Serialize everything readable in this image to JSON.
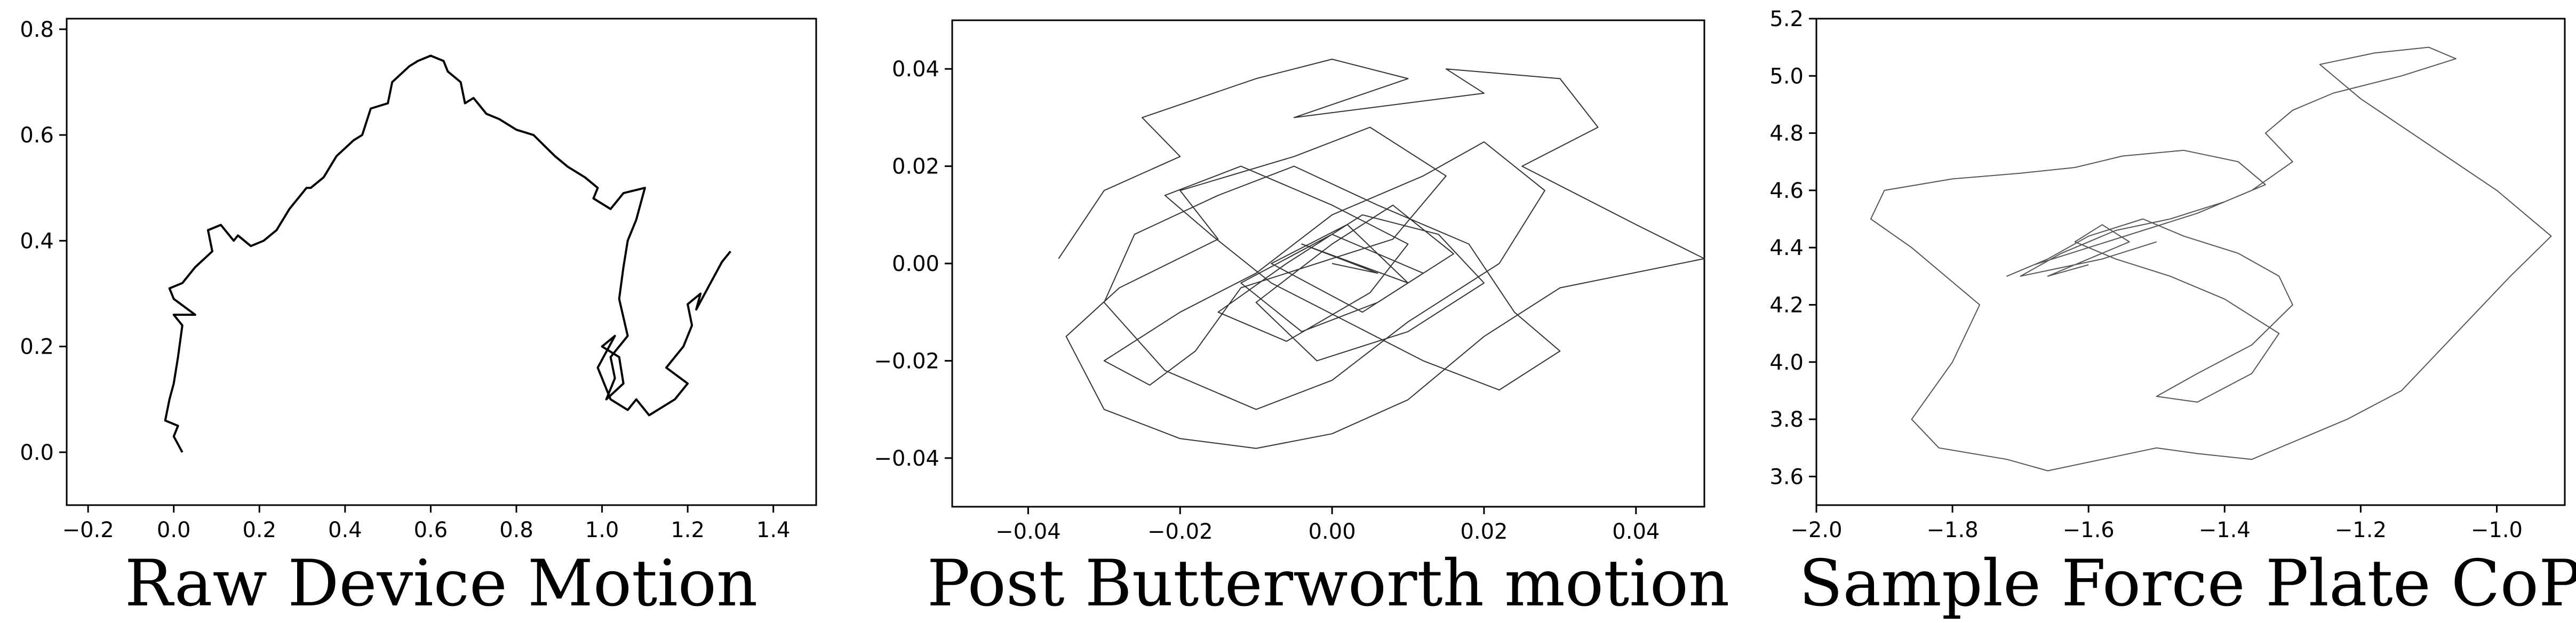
{
  "figure": {
    "panels_count": 3
  },
  "chart_data": [
    {
      "type": "line",
      "title": "Raw Device Motion",
      "xlabel": "",
      "ylabel": "",
      "xlim": [
        -0.25,
        1.5
      ],
      "ylim": [
        -0.1,
        0.82
      ],
      "xticks": [
        -0.2,
        0.0,
        0.2,
        0.4,
        0.6,
        0.8,
        1.0,
        1.2,
        1.4
      ],
      "xtick_labels": [
        "−0.2",
        "0.0",
        "0.2",
        "0.4",
        "0.6",
        "0.8",
        "1.0",
        "1.2",
        "1.4"
      ],
      "yticks": [
        0.0,
        0.2,
        0.4,
        0.6,
        0.8
      ],
      "ytick_labels": [
        "0.0",
        "0.2",
        "0.4",
        "0.6",
        "0.8"
      ],
      "grid": false,
      "line_color": "#000000",
      "series": [
        {
          "x": [
            0.02,
            0.0,
            0.01,
            -0.02,
            -0.01,
            0.0,
            0.01,
            0.02,
            0.0,
            0.05,
            0.0,
            -0.01,
            0.02,
            0.05,
            0.09,
            0.08,
            0.11,
            0.14,
            0.15,
            0.18,
            0.21,
            0.24,
            0.27,
            0.31,
            0.32,
            0.35,
            0.38,
            0.42,
            0.44,
            0.46,
            0.5,
            0.51,
            0.55,
            0.57,
            0.6,
            0.63,
            0.64,
            0.67,
            0.68,
            0.7,
            0.73,
            0.76,
            0.8,
            0.84,
            0.89,
            0.92,
            0.96,
            0.99,
            0.98,
            1.02,
            1.05,
            1.1,
            1.08,
            1.06,
            1.05,
            1.04,
            1.06,
            1.02,
            1.03,
            1.01,
            1.05,
            1.04,
            1.0,
            1.03,
            0.99,
            1.02,
            1.06,
            1.08,
            1.11,
            1.13,
            1.17,
            1.2,
            1.15,
            1.19,
            1.21,
            1.2,
            1.23,
            1.22,
            1.26,
            1.28,
            1.3
          ],
          "y": [
            0.0,
            0.03,
            0.05,
            0.06,
            0.1,
            0.13,
            0.18,
            0.24,
            0.26,
            0.26,
            0.29,
            0.31,
            0.32,
            0.35,
            0.38,
            0.42,
            0.43,
            0.4,
            0.41,
            0.39,
            0.4,
            0.42,
            0.46,
            0.5,
            0.5,
            0.52,
            0.56,
            0.59,
            0.6,
            0.65,
            0.66,
            0.7,
            0.73,
            0.74,
            0.75,
            0.74,
            0.72,
            0.7,
            0.66,
            0.67,
            0.64,
            0.63,
            0.61,
            0.6,
            0.56,
            0.54,
            0.52,
            0.5,
            0.48,
            0.46,
            0.49,
            0.5,
            0.44,
            0.4,
            0.35,
            0.29,
            0.22,
            0.18,
            0.14,
            0.1,
            0.13,
            0.18,
            0.2,
            0.22,
            0.16,
            0.1,
            0.08,
            0.1,
            0.07,
            0.08,
            0.1,
            0.13,
            0.16,
            0.2,
            0.24,
            0.28,
            0.3,
            0.27,
            0.33,
            0.36,
            0.38
          ]
        }
      ]
    },
    {
      "type": "line",
      "title": "Post Butterworth motion",
      "xlabel": "",
      "ylabel": "",
      "xlim": [
        -0.05,
        0.049
      ],
      "ylim": [
        -0.05,
        0.05
      ],
      "xticks": [
        -0.04,
        -0.02,
        0.0,
        0.02,
        0.04
      ],
      "xtick_labels": [
        "−0.04",
        "−0.02",
        "0.00",
        "0.02",
        "0.04"
      ],
      "yticks": [
        -0.04,
        -0.02,
        0.0,
        0.02,
        0.04
      ],
      "ytick_labels": [
        "−0.04",
        "−0.02",
        "0.00",
        "0.02",
        "0.04"
      ],
      "grid": false,
      "line_color": "#333333",
      "series": [
        {
          "x": [
            -0.036,
            -0.03,
            -0.02,
            -0.025,
            -0.01,
            0.0,
            0.01,
            -0.005,
            0.02,
            0.015,
            0.03,
            0.035,
            0.025,
            0.04,
            0.049,
            0.03,
            0.02,
            0.01,
            0.0,
            -0.01,
            -0.02,
            -0.03,
            -0.035,
            -0.028,
            -0.015,
            -0.02,
            -0.005,
            0.005,
            0.015,
            0.008,
            -0.012,
            -0.018,
            -0.024,
            -0.03,
            -0.02,
            -0.01,
            0.0,
            0.012,
            0.02,
            0.028,
            0.022,
            0.01,
            0.0,
            -0.01,
            -0.022,
            -0.03,
            -0.026,
            -0.015,
            -0.005,
            0.006,
            0.018,
            0.024,
            0.03,
            0.022,
            0.012,
            0.002,
            -0.008,
            -0.016,
            -0.022,
            -0.012,
            0.0,
            0.01,
            0.005,
            -0.006,
            -0.015,
            -0.006,
            0.004,
            0.014,
            0.02,
            0.01,
            -0.002,
            -0.01,
            0.0,
            0.008,
            0.016,
            0.006,
            -0.004,
            -0.012,
            0.0,
            0.012,
            0.004,
            -0.008,
            0.002,
            0.01,
            -0.004,
            0.006,
            0.0
          ],
          "y": [
            0.001,
            0.015,
            0.022,
            0.03,
            0.038,
            0.042,
            0.038,
            0.03,
            0.035,
            0.04,
            0.038,
            0.028,
            0.02,
            0.008,
            0.001,
            -0.005,
            -0.015,
            -0.028,
            -0.035,
            -0.038,
            -0.036,
            -0.03,
            -0.015,
            -0.005,
            0.005,
            0.015,
            0.022,
            0.028,
            0.018,
            0.005,
            -0.005,
            -0.018,
            -0.025,
            -0.02,
            -0.01,
            -0.002,
            0.01,
            0.018,
            0.025,
            0.015,
            0.0,
            -0.012,
            -0.024,
            -0.03,
            -0.022,
            -0.008,
            0.006,
            0.014,
            0.02,
            0.012,
            0.004,
            -0.01,
            -0.018,
            -0.026,
            -0.02,
            -0.012,
            -0.004,
            0.006,
            0.014,
            0.02,
            0.012,
            0.004,
            -0.006,
            -0.016,
            -0.01,
            0.0,
            0.01,
            0.006,
            -0.004,
            -0.014,
            -0.02,
            -0.008,
            0.004,
            0.012,
            0.002,
            -0.008,
            -0.014,
            -0.004,
            0.006,
            -0.002,
            -0.01,
            0.0,
            0.008,
            -0.004,
            0.004,
            -0.002,
            0.0
          ]
        }
      ]
    },
    {
      "type": "line",
      "title": "Sample Force Plate CoP",
      "xlabel": "",
      "ylabel": "",
      "xlim": [
        -2.0,
        -0.9
      ],
      "ylim": [
        3.5,
        5.2
      ],
      "xticks": [
        -2.0,
        -1.8,
        -1.6,
        -1.4,
        -1.2,
        -1.0
      ],
      "xtick_labels": [
        "−2.0",
        "−1.8",
        "−1.6",
        "−1.4",
        "−1.2",
        "−1.0"
      ],
      "yticks": [
        3.6,
        3.8,
        4.0,
        4.2,
        4.4,
        4.6,
        4.8,
        5.0,
        5.2
      ],
      "ytick_labels": [
        "3.6",
        "3.8",
        "4.0",
        "4.2",
        "4.4",
        "4.6",
        "4.8",
        "5.0",
        "5.2"
      ],
      "grid": false,
      "line_color": "#555555",
      "series": [
        {
          "x": [
            -1.5,
            -1.58,
            -1.66,
            -1.7,
            -1.64,
            -1.56,
            -1.48,
            -1.4,
            -1.34,
            -1.38,
            -1.46,
            -1.55,
            -1.62,
            -1.7,
            -1.8,
            -1.9,
            -1.92,
            -1.86,
            -1.76,
            -1.8,
            -1.86,
            -1.82,
            -1.72,
            -1.66,
            -1.58,
            -1.5,
            -1.44,
            -1.36,
            -1.3,
            -1.22,
            -1.14,
            -1.06,
            -0.98,
            -0.92,
            -1.0,
            -1.1,
            -1.2,
            -1.26,
            -1.18,
            -1.1,
            -1.06,
            -1.14,
            -1.24,
            -1.3,
            -1.34,
            -1.3,
            -1.36,
            -1.44,
            -1.52,
            -1.6,
            -1.68,
            -1.72,
            -1.66,
            -1.6,
            -1.52,
            -1.46,
            -1.38,
            -1.32,
            -1.3,
            -1.36,
            -1.44,
            -1.5,
            -1.44,
            -1.36,
            -1.32,
            -1.4,
            -1.48,
            -1.56,
            -1.62,
            -1.58,
            -1.54,
            -1.6,
            -1.66,
            -1.6
          ],
          "y": [
            4.42,
            4.36,
            4.32,
            4.3,
            4.38,
            4.46,
            4.5,
            4.56,
            4.62,
            4.7,
            4.74,
            4.72,
            4.68,
            4.66,
            4.64,
            4.6,
            4.5,
            4.4,
            4.2,
            4.0,
            3.8,
            3.7,
            3.66,
            3.62,
            3.66,
            3.7,
            3.68,
            3.66,
            3.72,
            3.8,
            3.9,
            4.1,
            4.3,
            4.44,
            4.6,
            4.76,
            4.92,
            5.04,
            5.08,
            5.1,
            5.06,
            5.0,
            4.94,
            4.88,
            4.8,
            4.7,
            4.6,
            4.52,
            4.46,
            4.4,
            4.34,
            4.3,
            4.36,
            4.44,
            4.5,
            4.44,
            4.38,
            4.3,
            4.2,
            4.06,
            3.96,
            3.88,
            3.86,
            3.96,
            4.1,
            4.22,
            4.3,
            4.36,
            4.42,
            4.48,
            4.42,
            4.36,
            4.3,
            4.34
          ]
        }
      ]
    }
  ]
}
